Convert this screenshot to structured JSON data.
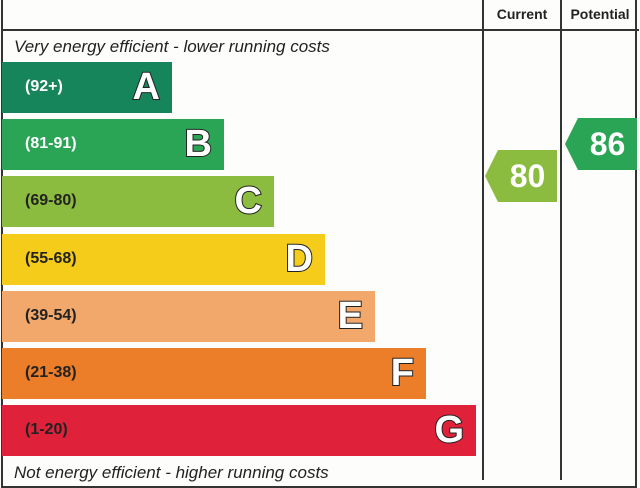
{
  "chart_data": {
    "type": "bar",
    "columns": [
      "Current",
      "Potential"
    ],
    "top_caption": "Very energy efficient - lower running costs",
    "bottom_caption": "Not energy efficient - higher running costs",
    "bands": [
      {
        "letter": "A",
        "range": "(92+)",
        "color": "#17855b",
        "text_color": "#ffffff"
      },
      {
        "letter": "B",
        "range": "(81-91)",
        "color": "#2aa455",
        "text_color": "#ffffff"
      },
      {
        "letter": "C",
        "range": "(69-80)",
        "color": "#8cbc3f",
        "text_color": "#222222"
      },
      {
        "letter": "D",
        "range": "(55-68)",
        "color": "#f5cc1a",
        "text_color": "#222222"
      },
      {
        "letter": "E",
        "range": "(39-54)",
        "color": "#f2a86a",
        "text_color": "#222222"
      },
      {
        "letter": "F",
        "range": "(21-38)",
        "color": "#ec7e2a",
        "text_color": "#222222"
      },
      {
        "letter": "G",
        "range": "(1-20)",
        "color": "#e0213a",
        "text_color": "#222222"
      }
    ],
    "current": {
      "value": "80",
      "band": "C",
      "color": "#8cbc3f"
    },
    "potential": {
      "value": "86",
      "band": "B",
      "color": "#2aa455"
    }
  }
}
